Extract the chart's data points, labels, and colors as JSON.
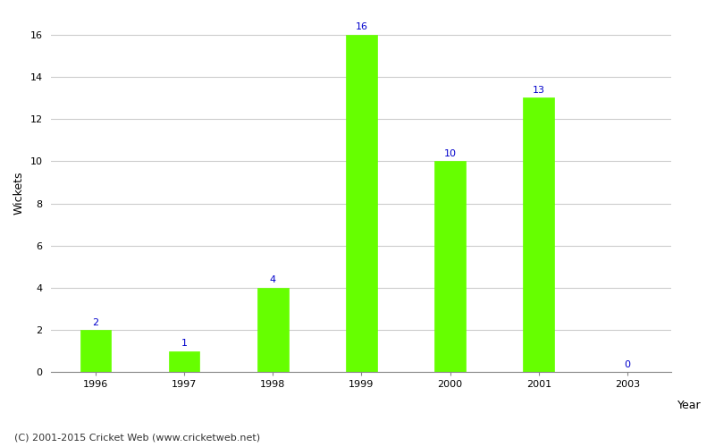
{
  "categories": [
    "1996",
    "1997",
    "1998",
    "1999",
    "2000",
    "2001",
    "2003"
  ],
  "values": [
    2,
    1,
    4,
    16,
    10,
    13,
    0
  ],
  "bar_color": "#66ff00",
  "bar_edgecolor": "#66ff00",
  "ylabel": "Wickets",
  "xlabel_right": "Year",
  "ylim": [
    0,
    17
  ],
  "yticks": [
    0,
    2,
    4,
    6,
    8,
    10,
    12,
    14,
    16
  ],
  "label_color": "#0000cc",
  "label_fontsize": 8,
  "axis_label_fontsize": 9,
  "tick_fontsize": 8,
  "grid_color": "#cccccc",
  "background_color": "#ffffff",
  "footer_text": "(C) 2001-2015 Cricket Web (www.cricketweb.net)",
  "footer_fontsize": 8,
  "bar_width": 0.35
}
